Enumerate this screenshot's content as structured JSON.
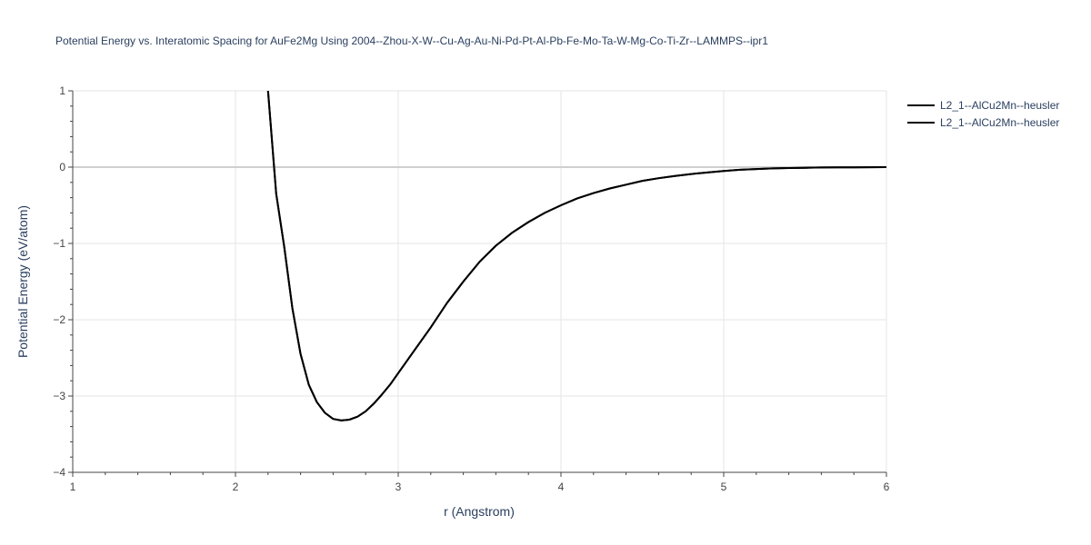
{
  "chart_data": {
    "type": "line",
    "title": "Potential Energy vs. Interatomic Spacing for AuFe2Mg Using 2004--Zhou-X-W--Cu-Ag-Au-Ni-Pd-Pt-Al-Pb-Fe-Mo-Ta-W-Mg-Co-Ti-Zr--LAMMPS--ipr1",
    "xlabel": "r (Angstrom)",
    "ylabel": "Potential Energy (eV/atom)",
    "xlim": [
      1,
      6
    ],
    "ylim": [
      -4,
      1
    ],
    "xticks": [
      1,
      2,
      3,
      4,
      5,
      6
    ],
    "yticks": [
      1,
      0,
      -1,
      -2,
      -3,
      -4
    ],
    "xtick_labels": [
      "1",
      "2",
      "3",
      "4",
      "5",
      "6"
    ],
    "ytick_labels": [
      "1",
      "0",
      "−1",
      "−2",
      "−3",
      "−4"
    ],
    "grid": true,
    "legend_position": "top-right",
    "series": [
      {
        "name": "L2_1--AlCu2Mn--heusler",
        "color": "#000000",
        "x": [
          2.2,
          2.25,
          2.3,
          2.35,
          2.4,
          2.45,
          2.5,
          2.55,
          2.6,
          2.65,
          2.7,
          2.75,
          2.8,
          2.85,
          2.9,
          2.95,
          3.0,
          3.1,
          3.2,
          3.3,
          3.4,
          3.5,
          3.6,
          3.7,
          3.8,
          3.9,
          4.0,
          4.1,
          4.2,
          4.3,
          4.4,
          4.5,
          4.6,
          4.7,
          4.8,
          4.9,
          5.0,
          5.1,
          5.2,
          5.3,
          5.4,
          5.5,
          5.6,
          5.7,
          5.8,
          5.9,
          6.0
        ],
        "y": [
          1.0,
          -0.35,
          -1.05,
          -1.85,
          -2.45,
          -2.85,
          -3.08,
          -3.22,
          -3.3,
          -3.32,
          -3.31,
          -3.27,
          -3.2,
          -3.1,
          -2.98,
          -2.85,
          -2.7,
          -2.4,
          -2.1,
          -1.78,
          -1.5,
          -1.24,
          -1.03,
          -0.86,
          -0.72,
          -0.6,
          -0.5,
          -0.41,
          -0.34,
          -0.28,
          -0.23,
          -0.18,
          -0.145,
          -0.115,
          -0.09,
          -0.07,
          -0.05,
          -0.035,
          -0.025,
          -0.017,
          -0.012,
          -0.008,
          -0.005,
          -0.003,
          -0.002,
          -0.001,
          0.0
        ]
      },
      {
        "name": "L2_1--AlCu2Mn--heusler",
        "color": "#000000",
        "x": [
          2.2,
          2.25,
          2.3,
          2.35,
          2.4,
          2.45,
          2.5,
          2.55,
          2.6,
          2.65,
          2.7,
          2.75,
          2.8,
          2.85,
          2.9,
          2.95,
          3.0,
          3.1,
          3.2,
          3.3,
          3.4,
          3.5,
          3.6,
          3.7,
          3.8,
          3.9,
          4.0,
          4.1,
          4.2,
          4.3,
          4.4,
          4.5,
          4.6,
          4.7,
          4.8,
          4.9,
          5.0,
          5.1,
          5.2,
          5.3,
          5.4,
          5.5,
          5.6,
          5.7,
          5.8,
          5.9,
          6.0
        ],
        "y": [
          1.0,
          -0.35,
          -1.05,
          -1.85,
          -2.45,
          -2.85,
          -3.08,
          -3.22,
          -3.3,
          -3.32,
          -3.31,
          -3.27,
          -3.2,
          -3.1,
          -2.98,
          -2.85,
          -2.7,
          -2.4,
          -2.1,
          -1.78,
          -1.5,
          -1.24,
          -1.03,
          -0.86,
          -0.72,
          -0.6,
          -0.5,
          -0.41,
          -0.34,
          -0.28,
          -0.23,
          -0.18,
          -0.145,
          -0.115,
          -0.09,
          -0.07,
          -0.05,
          -0.035,
          -0.025,
          -0.017,
          -0.012,
          -0.008,
          -0.005,
          -0.003,
          -0.002,
          -0.001,
          0.0
        ]
      }
    ]
  }
}
